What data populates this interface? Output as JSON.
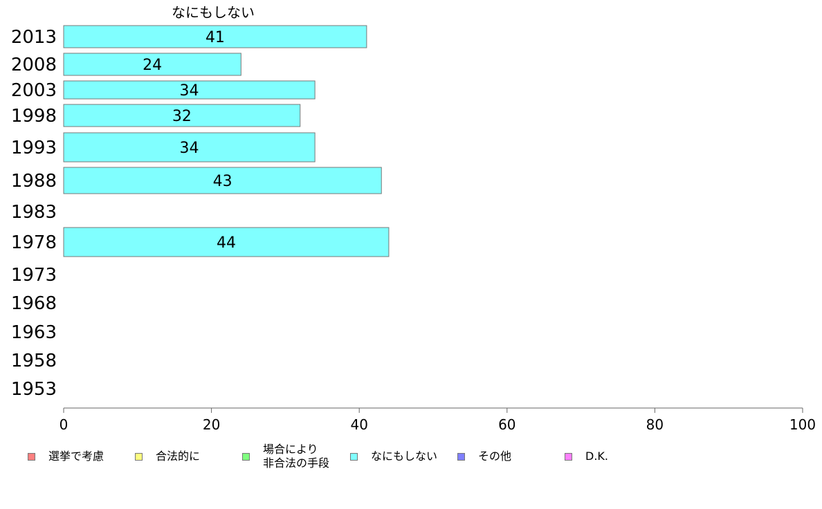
{
  "chart_data": {
    "type": "bar",
    "orientation": "horizontal",
    "series_title": "なにもしない",
    "categories": [
      "2013",
      "2008",
      "2003",
      "1998",
      "1993",
      "1988",
      "1983",
      "1978",
      "1973",
      "1968",
      "1963",
      "1958",
      "1953"
    ],
    "series": [
      {
        "name": "なにもしない",
        "color": "#80ffff",
        "values": [
          41,
          24,
          34,
          32,
          34,
          43,
          null,
          44,
          null,
          null,
          null,
          null,
          null
        ]
      }
    ],
    "xlim": [
      0,
      100
    ],
    "xticks": [
      "0",
      "20",
      "40",
      "60",
      "80",
      "100"
    ],
    "grid": false,
    "legend_position": "bottom",
    "legend": [
      {
        "label": "選挙で考慮",
        "color": "#ff8080"
      },
      {
        "label": "合法的に",
        "color": "#ffff80"
      },
      {
        "label": "場合により\n非合法の手段",
        "color": "#80ff80"
      },
      {
        "label": "なにもしない",
        "color": "#80ffff"
      },
      {
        "label": "その他",
        "color": "#8080ff"
      },
      {
        "label": "D.K.",
        "color": "#ff80ff"
      }
    ]
  }
}
